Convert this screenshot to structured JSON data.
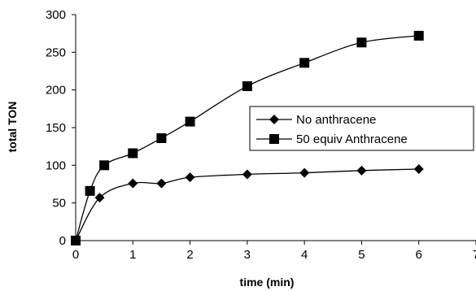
{
  "chart_data": {
    "type": "line",
    "title": "",
    "xlabel": "time (min)",
    "ylabel": "total TON",
    "xlim": [
      0,
      7
    ],
    "ylim": [
      0,
      300
    ],
    "xticks": [
      0,
      1,
      2,
      3,
      4,
      5,
      6,
      7
    ],
    "yticks": [
      0,
      50,
      100,
      150,
      200,
      250,
      300
    ],
    "grid": false,
    "smooth": true,
    "legend_position": "right",
    "series": [
      {
        "name": "No anthracene",
        "marker": "diamond",
        "color": "#000000",
        "x": [
          0,
          0.42,
          1,
          1.5,
          2,
          3,
          4,
          5,
          6
        ],
        "y": [
          0,
          57,
          76,
          76,
          84,
          88,
          90,
          93,
          95
        ]
      },
      {
        "name": "50 equiv Anthracene",
        "marker": "square",
        "color": "#000000",
        "x": [
          0,
          0.25,
          0.5,
          1,
          1.5,
          2,
          3,
          4,
          5,
          6
        ],
        "y": [
          0,
          66,
          100,
          116,
          136,
          158,
          205,
          236,
          263,
          272
        ]
      }
    ]
  }
}
